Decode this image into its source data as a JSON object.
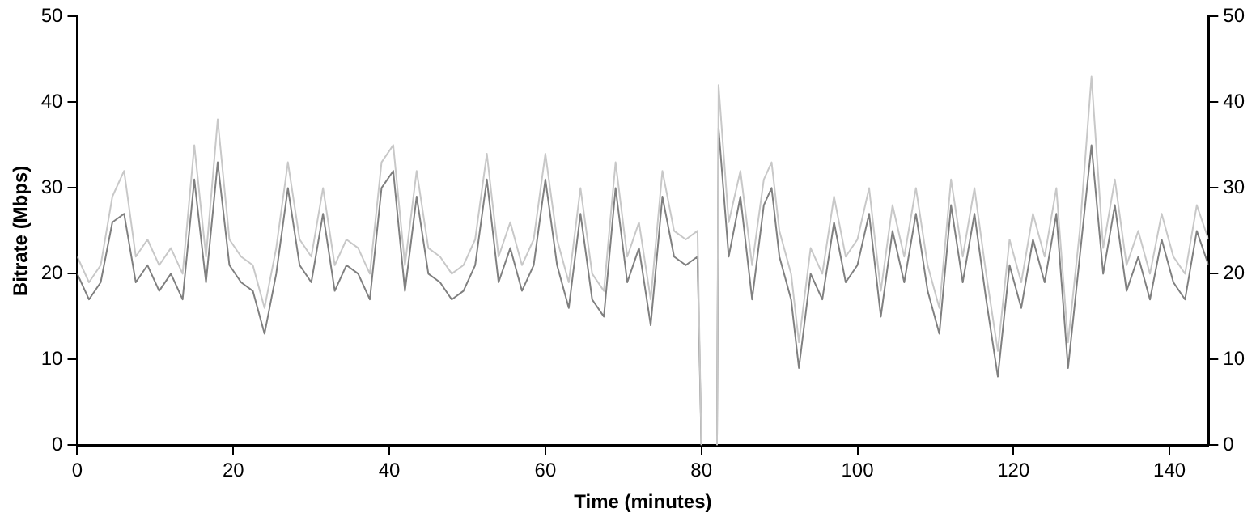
{
  "chart_data": {
    "type": "line",
    "xlabel": "Time (minutes)",
    "ylabel": "Bitrate (Mbps)",
    "x": [
      0,
      1.5,
      3,
      4.5,
      6,
      7.5,
      9,
      10.5,
      12,
      13.5,
      15,
      16.5,
      18,
      19.5,
      21,
      22.5,
      24,
      25.5,
      27,
      28.5,
      30,
      31.5,
      33,
      34.5,
      36,
      37.5,
      39,
      40.5,
      42,
      43.5,
      45,
      46.5,
      48,
      49.5,
      51,
      52.5,
      54,
      55.5,
      57,
      58.5,
      60,
      61.5,
      63,
      64.5,
      66,
      67.5,
      69,
      70.5,
      72,
      73.5,
      75,
      76.5,
      78,
      79.5,
      80,
      81,
      82,
      82.2,
      83.5,
      85,
      86.5,
      88,
      89,
      90,
      91.5,
      92.5,
      94,
      95.5,
      97,
      98.5,
      100,
      101.5,
      103,
      104.5,
      106,
      107.5,
      109,
      110.5,
      112,
      113.5,
      115,
      116.5,
      118,
      119.5,
      121,
      122.5,
      124,
      125.5,
      127,
      128.5,
      130,
      131.5,
      133,
      134.5,
      136,
      137.5,
      139,
      140.5,
      142,
      143.5,
      145
    ],
    "series": [
      {
        "color": "#c8c8c8",
        "values": [
          22,
          19,
          21,
          29,
          32,
          22,
          24,
          21,
          23,
          20,
          35,
          22,
          38,
          24,
          22,
          21,
          16,
          23,
          33,
          24,
          22,
          30,
          21,
          24,
          23,
          20,
          33,
          35,
          21,
          32,
          23,
          22,
          20,
          21,
          24,
          34,
          22,
          26,
          21,
          24,
          34,
          24,
          19,
          30,
          20,
          18,
          33,
          22,
          26,
          17,
          32,
          25,
          24,
          25,
          0,
          null,
          0,
          42,
          26,
          32,
          21,
          31,
          33,
          25,
          20,
          12,
          23,
          20,
          29,
          22,
          24,
          30,
          18,
          28,
          22,
          30,
          21,
          16,
          31,
          22,
          30,
          20,
          11,
          24,
          19,
          27,
          22,
          30,
          12,
          25,
          43,
          23,
          31,
          21,
          25,
          20,
          27,
          22,
          20,
          28,
          24
        ]
      },
      {
        "color": "#808080",
        "values": [
          20,
          17,
          19,
          26,
          27,
          19,
          21,
          18,
          20,
          17,
          31,
          19,
          33,
          21,
          19,
          18,
          13,
          20,
          30,
          21,
          19,
          27,
          18,
          21,
          20,
          17,
          30,
          32,
          18,
          29,
          20,
          19,
          17,
          18,
          21,
          31,
          19,
          23,
          18,
          21,
          31,
          21,
          16,
          27,
          17,
          15,
          30,
          19,
          23,
          14,
          29,
          22,
          21,
          22,
          0,
          null,
          0,
          37,
          22,
          29,
          17,
          28,
          30,
          22,
          17,
          9,
          20,
          17,
          26,
          19,
          21,
          27,
          15,
          25,
          19,
          27,
          18,
          13,
          28,
          19,
          27,
          17,
          8,
          21,
          16,
          24,
          19,
          27,
          9,
          22,
          35,
          20,
          28,
          18,
          22,
          17,
          24,
          19,
          17,
          25,
          21
        ]
      }
    ],
    "xlim": [
      0,
      145
    ],
    "xticks": [
      0,
      20,
      40,
      60,
      80,
      100,
      120,
      140
    ],
    "ylim": [
      0,
      50
    ],
    "yticks": [
      0,
      10,
      20,
      30,
      40,
      50
    ],
    "y2lim": [
      0,
      50
    ],
    "y2ticks": [
      0,
      10,
      20,
      30,
      40,
      50
    ],
    "grid": false,
    "legend": false,
    "marker": "none",
    "line_style": "solid"
  }
}
